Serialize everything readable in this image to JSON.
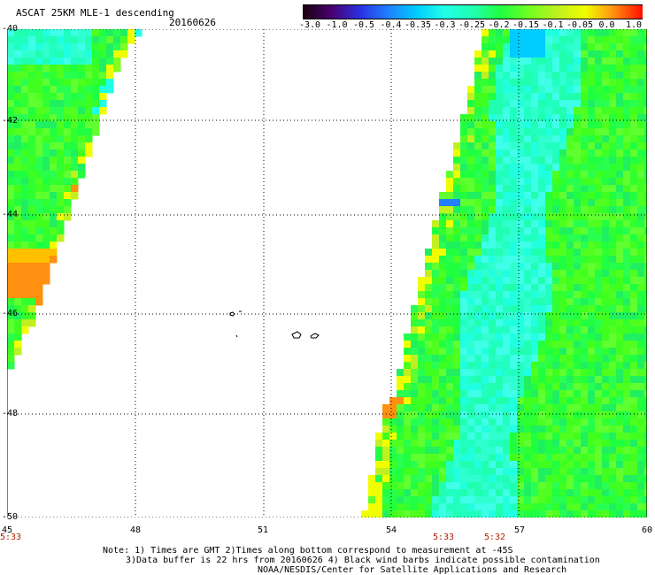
{
  "header": {
    "title": "ASCAT 25KM MLE-1 descending",
    "date": "20160626"
  },
  "colorbar": {
    "labels": [
      "-3.0",
      "-1.0",
      "-0.5",
      "-0.4",
      "-0.35",
      "-0.3",
      "-0.25",
      "-0.2",
      "-0.15",
      "-0.1",
      "-0.05",
      "0.0",
      "1.0"
    ],
    "colors": [
      "#1a0010",
      "#4a0070",
      "#2a30e0",
      "#2080ff",
      "#00ccff",
      "#20ffe8",
      "#20ffb0",
      "#20ff40",
      "#70ff20",
      "#c0f020",
      "#f0ff00",
      "#ff9010",
      "#ff1000"
    ]
  },
  "map": {
    "lat_labels": [
      "-40",
      "-42",
      "-44",
      "-46",
      "-48",
      "-50"
    ],
    "lon_labels": [
      "45",
      "48",
      "51",
      "54",
      "57",
      "60"
    ],
    "time_labels": [
      "5:33",
      "5:33",
      "5:32"
    ]
  },
  "notes": {
    "line1": "Note: 1) Times are GMT 2)Times along bottom correspond to measurement at -45S",
    "line2": "3)Data buffer is 22 hrs from 20160626 4) Black wind barbs indicate possible contamination",
    "line3": "NOAA/NESDIS/Center for Satellite Applications and Research"
  }
}
